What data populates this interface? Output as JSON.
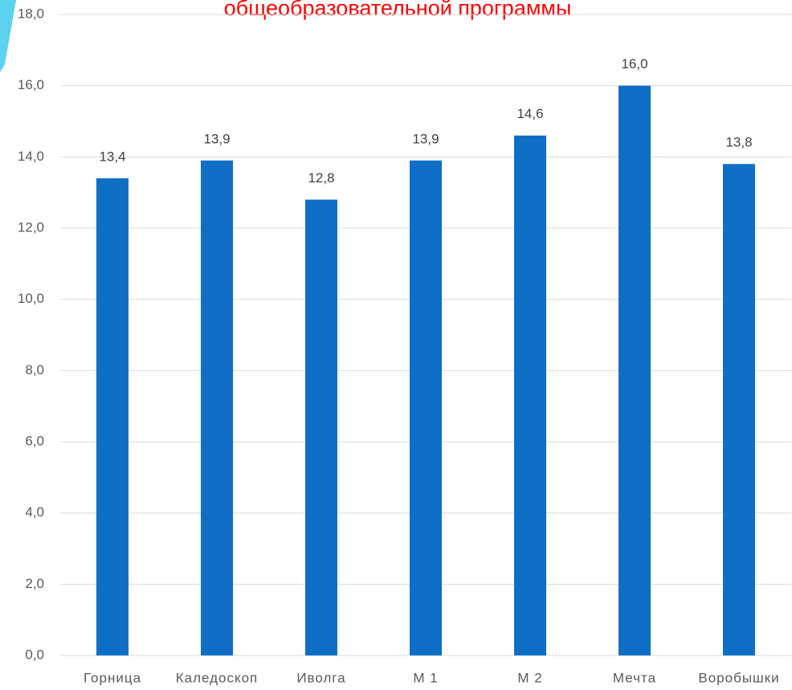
{
  "chart_data": {
    "type": "bar",
    "title": "общеобразовательной программы",
    "categories": [
      "Горница",
      "Каледоскоп",
      "Иволга",
      "М 1",
      "М 2",
      "Мечта",
      "Воробышки"
    ],
    "values": [
      13.4,
      13.9,
      12.8,
      13.9,
      14.6,
      16.0,
      13.8
    ],
    "value_labels": [
      "13,4",
      "13,9",
      "12,8",
      "13,9",
      "14,6",
      "16,0",
      "13,8"
    ],
    "color": "#0f6fc6",
    "ylim": [
      0,
      18
    ],
    "yticks": [
      {
        "value": 0,
        "label": "0,0"
      },
      {
        "value": 2,
        "label": "2,0"
      },
      {
        "value": 4,
        "label": "4,0"
      },
      {
        "value": 6,
        "label": "6,0"
      },
      {
        "value": 8,
        "label": "8,0"
      },
      {
        "value": 10,
        "label": "10,0"
      },
      {
        "value": 12,
        "label": "12,0"
      },
      {
        "value": 14,
        "label": "14,0"
      },
      {
        "value": 16,
        "label": "16,0"
      },
      {
        "value": 18,
        "label": "18,0"
      }
    ],
    "grid": true
  }
}
